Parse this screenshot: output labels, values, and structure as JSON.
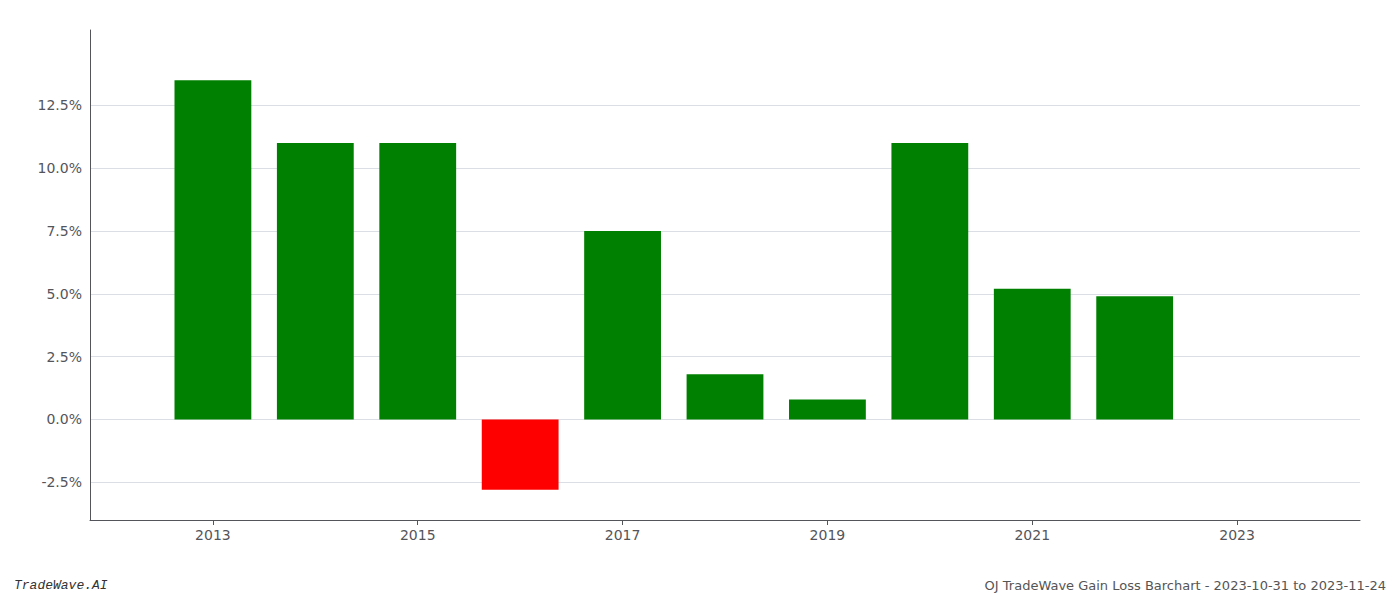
{
  "chart_data": {
    "type": "bar",
    "x": [
      2013,
      2014,
      2015,
      2016,
      2017,
      2018,
      2019,
      2020,
      2021,
      2022
    ],
    "values": [
      0.135,
      0.11,
      0.11,
      -0.028,
      0.075,
      0.018,
      0.008,
      0.11,
      0.052,
      0.049
    ],
    "colors": [
      "#008000",
      "#008000",
      "#008000",
      "#ff0000",
      "#008000",
      "#008000",
      "#008000",
      "#008000",
      "#008000",
      "#008000"
    ],
    "xlim": [
      2011.8,
      2024.2
    ],
    "xticks": [
      2013,
      2015,
      2017,
      2019,
      2021,
      2023
    ],
    "ylim": [
      -0.04,
      0.155
    ],
    "yticks": [
      {
        "value": -0.025,
        "label": "-2.5%"
      },
      {
        "value": 0.0,
        "label": "0.0%"
      },
      {
        "value": 0.025,
        "label": "2.5%"
      },
      {
        "value": 0.05,
        "label": "5.0%"
      },
      {
        "value": 0.075,
        "label": "7.5%"
      },
      {
        "value": 0.1,
        "label": "10.0%"
      },
      {
        "value": 0.125,
        "label": "12.5%"
      }
    ],
    "grid": true,
    "annotations": [
      "TradeWave.AI",
      "OJ TradeWave Gain Loss Barchart - 2023-10-31 to 2023-11-24"
    ]
  }
}
